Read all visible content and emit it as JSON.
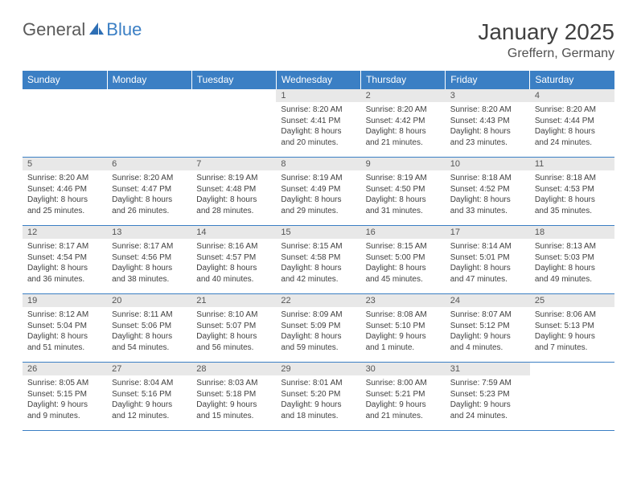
{
  "brand": {
    "part1": "General",
    "part2": "Blue"
  },
  "title": "January 2025",
  "location": "Greffern, Germany",
  "weekdays": [
    "Sunday",
    "Monday",
    "Tuesday",
    "Wednesday",
    "Thursday",
    "Friday",
    "Saturday"
  ],
  "colors": {
    "header_bg": "#3b7fc4",
    "header_text": "#ffffff",
    "daynum_bg": "#e8e8e8",
    "grid_line": "#3b7fc4",
    "text": "#404040"
  },
  "layout": {
    "cols": 7,
    "rows": 5,
    "first_weekday_index": 3
  },
  "days": [
    {
      "n": 1,
      "sunrise": "8:20 AM",
      "sunset": "4:41 PM",
      "daylight": "8 hours and 20 minutes."
    },
    {
      "n": 2,
      "sunrise": "8:20 AM",
      "sunset": "4:42 PM",
      "daylight": "8 hours and 21 minutes."
    },
    {
      "n": 3,
      "sunrise": "8:20 AM",
      "sunset": "4:43 PM",
      "daylight": "8 hours and 23 minutes."
    },
    {
      "n": 4,
      "sunrise": "8:20 AM",
      "sunset": "4:44 PM",
      "daylight": "8 hours and 24 minutes."
    },
    {
      "n": 5,
      "sunrise": "8:20 AM",
      "sunset": "4:46 PM",
      "daylight": "8 hours and 25 minutes."
    },
    {
      "n": 6,
      "sunrise": "8:20 AM",
      "sunset": "4:47 PM",
      "daylight": "8 hours and 26 minutes."
    },
    {
      "n": 7,
      "sunrise": "8:19 AM",
      "sunset": "4:48 PM",
      "daylight": "8 hours and 28 minutes."
    },
    {
      "n": 8,
      "sunrise": "8:19 AM",
      "sunset": "4:49 PM",
      "daylight": "8 hours and 29 minutes."
    },
    {
      "n": 9,
      "sunrise": "8:19 AM",
      "sunset": "4:50 PM",
      "daylight": "8 hours and 31 minutes."
    },
    {
      "n": 10,
      "sunrise": "8:18 AM",
      "sunset": "4:52 PM",
      "daylight": "8 hours and 33 minutes."
    },
    {
      "n": 11,
      "sunrise": "8:18 AM",
      "sunset": "4:53 PM",
      "daylight": "8 hours and 35 minutes."
    },
    {
      "n": 12,
      "sunrise": "8:17 AM",
      "sunset": "4:54 PM",
      "daylight": "8 hours and 36 minutes."
    },
    {
      "n": 13,
      "sunrise": "8:17 AM",
      "sunset": "4:56 PM",
      "daylight": "8 hours and 38 minutes."
    },
    {
      "n": 14,
      "sunrise": "8:16 AM",
      "sunset": "4:57 PM",
      "daylight": "8 hours and 40 minutes."
    },
    {
      "n": 15,
      "sunrise": "8:15 AM",
      "sunset": "4:58 PM",
      "daylight": "8 hours and 42 minutes."
    },
    {
      "n": 16,
      "sunrise": "8:15 AM",
      "sunset": "5:00 PM",
      "daylight": "8 hours and 45 minutes."
    },
    {
      "n": 17,
      "sunrise": "8:14 AM",
      "sunset": "5:01 PM",
      "daylight": "8 hours and 47 minutes."
    },
    {
      "n": 18,
      "sunrise": "8:13 AM",
      "sunset": "5:03 PM",
      "daylight": "8 hours and 49 minutes."
    },
    {
      "n": 19,
      "sunrise": "8:12 AM",
      "sunset": "5:04 PM",
      "daylight": "8 hours and 51 minutes."
    },
    {
      "n": 20,
      "sunrise": "8:11 AM",
      "sunset": "5:06 PM",
      "daylight": "8 hours and 54 minutes."
    },
    {
      "n": 21,
      "sunrise": "8:10 AM",
      "sunset": "5:07 PM",
      "daylight": "8 hours and 56 minutes."
    },
    {
      "n": 22,
      "sunrise": "8:09 AM",
      "sunset": "5:09 PM",
      "daylight": "8 hours and 59 minutes."
    },
    {
      "n": 23,
      "sunrise": "8:08 AM",
      "sunset": "5:10 PM",
      "daylight": "9 hours and 1 minute."
    },
    {
      "n": 24,
      "sunrise": "8:07 AM",
      "sunset": "5:12 PM",
      "daylight": "9 hours and 4 minutes."
    },
    {
      "n": 25,
      "sunrise": "8:06 AM",
      "sunset": "5:13 PM",
      "daylight": "9 hours and 7 minutes."
    },
    {
      "n": 26,
      "sunrise": "8:05 AM",
      "sunset": "5:15 PM",
      "daylight": "9 hours and 9 minutes."
    },
    {
      "n": 27,
      "sunrise": "8:04 AM",
      "sunset": "5:16 PM",
      "daylight": "9 hours and 12 minutes."
    },
    {
      "n": 28,
      "sunrise": "8:03 AM",
      "sunset": "5:18 PM",
      "daylight": "9 hours and 15 minutes."
    },
    {
      "n": 29,
      "sunrise": "8:01 AM",
      "sunset": "5:20 PM",
      "daylight": "9 hours and 18 minutes."
    },
    {
      "n": 30,
      "sunrise": "8:00 AM",
      "sunset": "5:21 PM",
      "daylight": "9 hours and 21 minutes."
    },
    {
      "n": 31,
      "sunrise": "7:59 AM",
      "sunset": "5:23 PM",
      "daylight": "9 hours and 24 minutes."
    }
  ],
  "labels": {
    "sunrise": "Sunrise:",
    "sunset": "Sunset:",
    "daylight": "Daylight:"
  }
}
